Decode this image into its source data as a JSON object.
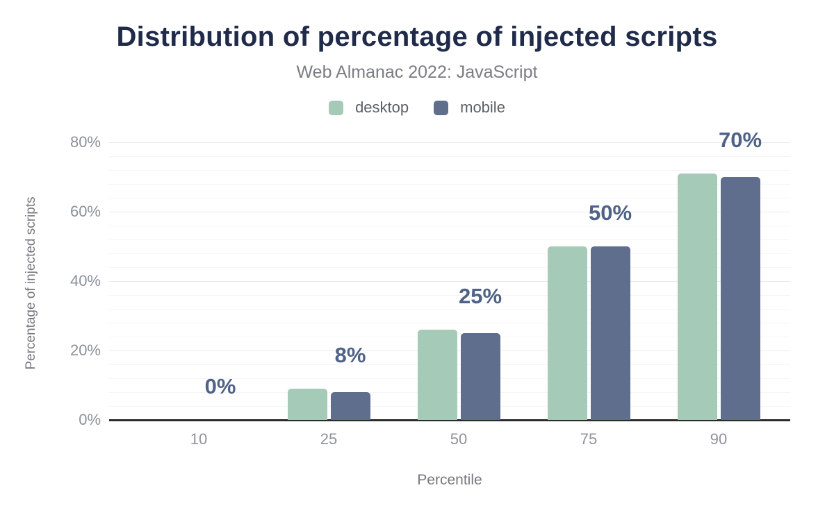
{
  "header": {
    "title": "Distribution of percentage of injected scripts",
    "subtitle": "Web Almanac 2022: JavaScript"
  },
  "legend": [
    {
      "label": "desktop",
      "color": "#a6cab8"
    },
    {
      "label": "mobile",
      "color": "#5f6e8c"
    }
  ],
  "colors": {
    "title_text": "#1f2b49",
    "subtitle_text": "#7a7d82",
    "legend_text": "#5b5f66",
    "tick_text": "#8b919b",
    "axis_title_text": "#75787e",
    "data_label": "#4f6288",
    "axis_line": "#2b2b2b",
    "grid_major": "#e9e9e9",
    "grid_minor": "#f5f5f5",
    "desktop": "#a6cab8",
    "mobile": "#5f6e8c"
  },
  "chart_data": {
    "type": "bar",
    "title": "Distribution of percentage of injected scripts",
    "subtitle": "Web Almanac 2022: JavaScript",
    "categories": [
      "10",
      "25",
      "50",
      "75",
      "90"
    ],
    "series": [
      {
        "name": "desktop",
        "color": "#a6cab8",
        "values": [
          0,
          9,
          26,
          50,
          71
        ]
      },
      {
        "name": "mobile",
        "color": "#5f6e8c",
        "values": [
          0,
          8,
          25,
          50,
          70
        ]
      }
    ],
    "data_labels": [
      "0%",
      "8%",
      "25%",
      "50%",
      "70%"
    ],
    "xlabel": "Percentile",
    "ylabel": "Percentage of injected scripts",
    "ylim": [
      0,
      80
    ],
    "yticks": [
      "0%",
      "20%",
      "40%",
      "60%",
      "80%"
    ],
    "ytick_step": 20,
    "minor_gridline_step": 4,
    "grid": "horizontal-only",
    "legend_position": "top-center",
    "bar_corner_radius": "rounded-top"
  }
}
